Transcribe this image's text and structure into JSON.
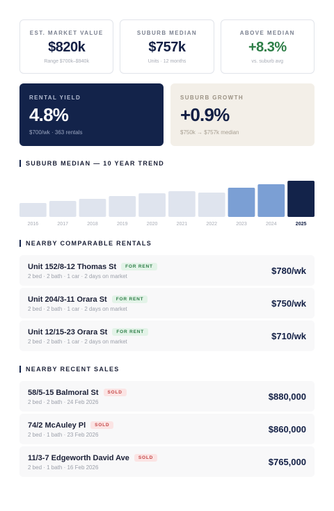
{
  "stats": [
    {
      "label": "EST. MARKET VALUE",
      "value": "$820k",
      "sub": "Range $700k–$940k",
      "accent": "#121f45"
    },
    {
      "label": "SUBURB MEDIAN",
      "value": "$757k",
      "sub": "Units · 12 months",
      "accent": "#121f45"
    },
    {
      "label": "ABOVE MEDIAN",
      "value": "+8.3%",
      "sub": "vs. suburb avg",
      "accent": "#2c7d46"
    }
  ],
  "rental_yield": {
    "label": "RENTAL YIELD",
    "value": "4.8%",
    "sub": "$700/wk · 363 rentals"
  },
  "suburb_growth": {
    "label": "SUBURB GROWTH",
    "value": "+0.9%",
    "sub": "$750k → $757k median"
  },
  "trend_title": "SUBURB MEDIAN — 10 YEAR TREND",
  "chart_data": {
    "type": "bar",
    "categories": [
      "2016",
      "2017",
      "2018",
      "2019",
      "2020",
      "2021",
      "2022",
      "2023",
      "2024",
      "2025"
    ],
    "values": [
      20,
      23,
      26,
      30,
      34,
      37,
      35,
      42,
      47,
      52
    ],
    "colors": [
      "#dfe4ee",
      "#dfe4ee",
      "#dfe4ee",
      "#dfe4ee",
      "#dfe4ee",
      "#dfe4ee",
      "#dfe4ee",
      "#7b9fd4",
      "#7b9fd4",
      "#13234a"
    ],
    "highlight": "2025",
    "title": "SUBURB MEDIAN — 10 YEAR TREND",
    "xlabel": "",
    "ylabel": "",
    "ylim": [
      0,
      52
    ],
    "grid": false
  },
  "rentals_title": "NEARBY COMPARABLE RENTALS",
  "rentals": [
    {
      "address": "Unit 152/8-12 Thomas St",
      "badge": "FOR RENT",
      "details": "2 bed · 2 bath · 1 car · 2 days on market",
      "price": "$780/wk"
    },
    {
      "address": "Unit 204/3-11 Orara St",
      "badge": "FOR RENT",
      "details": "2 bed · 2 bath · 1 car · 2 days on market",
      "price": "$750/wk"
    },
    {
      "address": "Unit 12/15-23 Orara St",
      "badge": "FOR RENT",
      "details": "2 bed · 2 bath · 1 car · 2 days on market",
      "price": "$710/wk"
    }
  ],
  "sales_title": "NEARBY RECENT SALES",
  "sales": [
    {
      "address": "58/5-15 Balmoral St",
      "badge": "SOLD",
      "details": "2 bed · 2 bath · 24 Feb 2026",
      "price": "$880,000"
    },
    {
      "address": "74/2 McAuley Pl",
      "badge": "SOLD",
      "details": "2 bed · 1 bath · 23 Feb 2026",
      "price": "$860,000"
    },
    {
      "address": "11/3-7 Edgeworth David Ave",
      "badge": "SOLD",
      "details": "2 bed · 1 bath · 16 Feb 2026",
      "price": "$765,000"
    }
  ]
}
